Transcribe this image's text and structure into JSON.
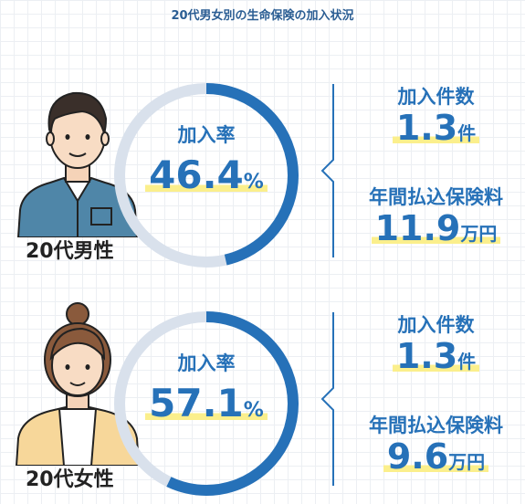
{
  "title": "20代男女別の生命保険の加入状況",
  "colors": {
    "ring": "#2671b8",
    "track": "#d9e1ec",
    "text": "#2671b8",
    "highlight": "#fbef8c"
  },
  "chart_data": [
    {
      "type": "pie",
      "group": "20代男性",
      "rate_label": "加入率",
      "rate_value": "46.4",
      "rate_unit": "%",
      "value": 46.4,
      "count_label": "加入件数",
      "count_value": "1.3",
      "count_unit": "件",
      "premium_label": "年間払込保険料",
      "premium_value": "11.9",
      "premium_unit": "万円"
    },
    {
      "type": "pie",
      "group": "20代女性",
      "rate_label": "加入率",
      "rate_value": "57.1",
      "rate_unit": "%",
      "value": 57.1,
      "count_label": "加入件数",
      "count_value": "1.3",
      "count_unit": "件",
      "premium_label": "年間払込保険料",
      "premium_value": "9.6",
      "premium_unit": "万円"
    }
  ]
}
